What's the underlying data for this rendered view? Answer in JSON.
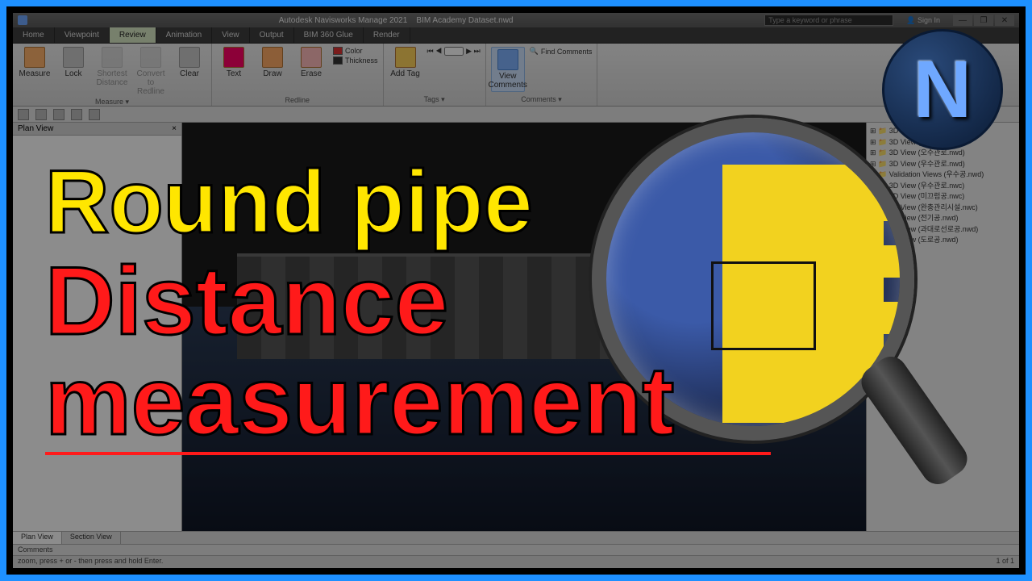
{
  "frame_color": "#1e90ff",
  "titlebar": {
    "app": "Autodesk Navisworks Manage 2021",
    "doc": "BIM Academy Dataset.nwd",
    "search_placeholder": "Type a keyword or phrase",
    "signin": "Sign In",
    "controls": [
      "—",
      "❐",
      "✕"
    ]
  },
  "menu_tabs": [
    "Home",
    "Viewpoint",
    "Review",
    "Animation",
    "View",
    "Output",
    "BIM 360 Glue",
    "Render"
  ],
  "menu_active_index": 2,
  "ribbon": {
    "groups": [
      {
        "name": "Measure ▾",
        "items": [
          {
            "label": "Measure",
            "icon": "ruler"
          },
          {
            "label": "Lock",
            "icon": "lock"
          },
          {
            "label": "Shortest Distance",
            "disabled": true
          },
          {
            "label": "Convert to Redline",
            "disabled": true
          },
          {
            "label": "Clear"
          }
        ]
      },
      {
        "name": "Redline",
        "items": [
          {
            "label": "Text"
          },
          {
            "label": "Draw"
          },
          {
            "label": "Erase"
          }
        ],
        "extras": [
          "Color",
          "Thickness"
        ]
      },
      {
        "name": "Tags ▾",
        "items": [
          {
            "label": "Add Tag"
          }
        ],
        "nav": [
          "⏮",
          "◀",
          "",
          "▶",
          "⏭"
        ]
      },
      {
        "name": "Comments ▾",
        "items": [
          {
            "label": "View Comments",
            "highlight": true
          }
        ],
        "extra": "Find Comments"
      }
    ]
  },
  "left_panel": {
    "title": "Plan View",
    "close": "×"
  },
  "right_panel": {
    "tree_items": [
      "3D View (설계도.nwd)",
      "3D View (상수관로.nwd)",
      "3D View (오수관로.nwd)",
      "3D View (우수관로.nwd)",
      "Validation Views (우수공.nwd)",
      "3D View (우수관로.nwc)",
      "3D View (미끄럼공.nwc)",
      "3D View (완충관리시설.nwc)",
      "3D View (전기공.nwd)",
      "3D View (과대로선로공.nwd)",
      "3D View (도로공.nwd)"
    ]
  },
  "bottom_tabs": [
    "Plan View",
    "Section View"
  ],
  "bottom_active": 0,
  "comments_label": "Comments",
  "status_left": "zoom, press + or - then press and hold Enter.",
  "status_right": "1 of 1",
  "overlay": {
    "line1": "Round pipe",
    "line2a": "Distance",
    "line2b": "measurement",
    "line1_color": "#ffe600",
    "line2_color": "#ff1a1a",
    "stroke_color": "#000000",
    "logo_letter": "N",
    "magnifier_yellow": "#f2d21f"
  }
}
